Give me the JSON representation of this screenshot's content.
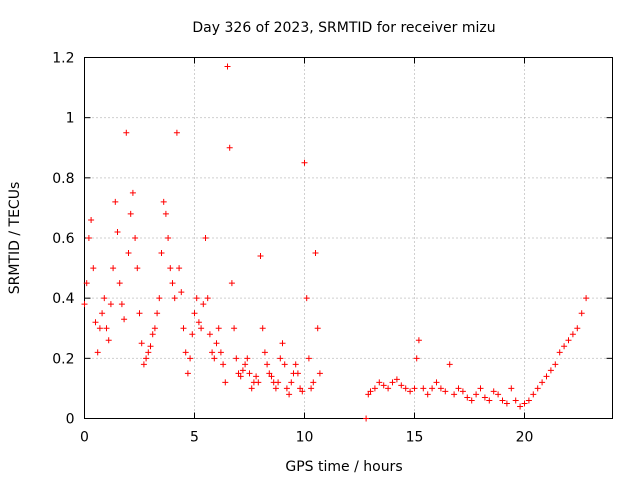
{
  "chart_data": {
    "type": "scatter",
    "title": "Day 326 of 2023, SRMTID for receiver mizu",
    "xlabel": "GPS time / hours",
    "ylabel": "SRMTID / TECUs",
    "xlim": [
      0,
      24
    ],
    "ylim": [
      0,
      1.2
    ],
    "x_ticks": [
      0,
      5,
      10,
      15,
      20
    ],
    "y_ticks": [
      0,
      0.2,
      0.4,
      0.6,
      0.8,
      1,
      1.2
    ],
    "x_tick_labels": [
      "0",
      "5",
      "10",
      "15",
      "20"
    ],
    "y_tick_labels": [
      "0",
      "0.2",
      "0.4",
      "0.6",
      "0.8",
      "1",
      "1.2"
    ],
    "grid": true,
    "marker": "+",
    "color": "#ff0000",
    "series": [
      {
        "name": "SRMTID",
        "x": [
          0.0,
          0.1,
          0.2,
          0.3,
          0.4,
          0.5,
          0.6,
          0.7,
          0.8,
          0.9,
          1.0,
          1.1,
          1.2,
          1.3,
          1.4,
          1.5,
          1.6,
          1.7,
          1.8,
          1.9,
          2.0,
          2.1,
          2.2,
          2.3,
          2.4,
          2.5,
          2.6,
          2.7,
          2.8,
          2.9,
          3.0,
          3.1,
          3.2,
          3.3,
          3.4,
          3.5,
          3.6,
          3.7,
          3.8,
          3.9,
          4.0,
          4.1,
          4.2,
          4.3,
          4.4,
          4.5,
          4.6,
          4.7,
          4.8,
          4.9,
          5.0,
          5.1,
          5.2,
          5.3,
          5.4,
          5.5,
          5.6,
          5.7,
          5.8,
          5.9,
          6.0,
          6.1,
          6.2,
          6.3,
          6.4,
          6.5,
          6.6,
          6.7,
          6.8,
          6.9,
          7.0,
          7.1,
          7.2,
          7.3,
          7.4,
          7.5,
          7.6,
          7.7,
          7.8,
          7.9,
          8.0,
          8.1,
          8.2,
          8.3,
          8.4,
          8.5,
          8.6,
          8.7,
          8.8,
          8.9,
          9.0,
          9.1,
          9.2,
          9.3,
          9.4,
          9.5,
          9.6,
          9.7,
          9.8,
          9.9,
          10.0,
          10.1,
          10.2,
          10.3,
          10.4,
          10.5,
          10.6,
          10.7,
          12.8,
          12.9,
          13.0,
          13.2,
          13.4,
          13.6,
          13.8,
          14.0,
          14.2,
          14.4,
          14.6,
          14.8,
          15.0,
          15.1,
          15.2,
          15.4,
          15.6,
          15.8,
          16.0,
          16.2,
          16.4,
          16.6,
          16.8,
          17.0,
          17.2,
          17.4,
          17.6,
          17.8,
          18.0,
          18.2,
          18.4,
          18.6,
          18.8,
          19.0,
          19.2,
          19.4,
          19.6,
          19.8,
          20.0,
          20.2,
          20.4,
          20.6,
          20.8,
          21.0,
          21.2,
          21.4,
          21.6,
          21.8,
          22.0,
          22.2,
          22.4,
          22.6,
          22.8
        ],
        "y": [
          0.38,
          0.45,
          0.6,
          0.66,
          0.5,
          0.32,
          0.22,
          0.3,
          0.35,
          0.4,
          0.3,
          0.26,
          0.38,
          0.5,
          0.72,
          0.62,
          0.45,
          0.38,
          0.33,
          0.95,
          0.55,
          0.68,
          0.75,
          0.6,
          0.5,
          0.35,
          0.25,
          0.18,
          0.2,
          0.22,
          0.24,
          0.28,
          0.3,
          0.35,
          0.4,
          0.55,
          0.72,
          0.68,
          0.6,
          0.5,
          0.45,
          0.4,
          0.95,
          0.5,
          0.42,
          0.3,
          0.22,
          0.15,
          0.2,
          0.28,
          0.35,
          0.4,
          0.32,
          0.3,
          0.38,
          0.6,
          0.4,
          0.28,
          0.22,
          0.2,
          0.25,
          0.3,
          0.22,
          0.18,
          0.12,
          1.17,
          0.9,
          0.45,
          0.3,
          0.2,
          0.15,
          0.14,
          0.16,
          0.18,
          0.2,
          0.15,
          0.1,
          0.12,
          0.14,
          0.12,
          0.54,
          0.3,
          0.22,
          0.18,
          0.15,
          0.14,
          0.12,
          0.1,
          0.12,
          0.2,
          0.25,
          0.18,
          0.1,
          0.08,
          0.12,
          0.15,
          0.18,
          0.15,
          0.1,
          0.09,
          0.85,
          0.4,
          0.2,
          0.1,
          0.12,
          0.55,
          0.3,
          0.15,
          0.0,
          0.08,
          0.09,
          0.1,
          0.12,
          0.11,
          0.1,
          0.12,
          0.13,
          0.11,
          0.1,
          0.09,
          0.1,
          0.2,
          0.26,
          0.1,
          0.08,
          0.1,
          0.12,
          0.1,
          0.09,
          0.18,
          0.08,
          0.1,
          0.09,
          0.07,
          0.06,
          0.08,
          0.1,
          0.07,
          0.06,
          0.09,
          0.08,
          0.06,
          0.05,
          0.1,
          0.06,
          0.04,
          0.05,
          0.06,
          0.08,
          0.1,
          0.12,
          0.14,
          0.16,
          0.18,
          0.22,
          0.24,
          0.26,
          0.28,
          0.3,
          0.35,
          0.4
        ]
      }
    ]
  }
}
